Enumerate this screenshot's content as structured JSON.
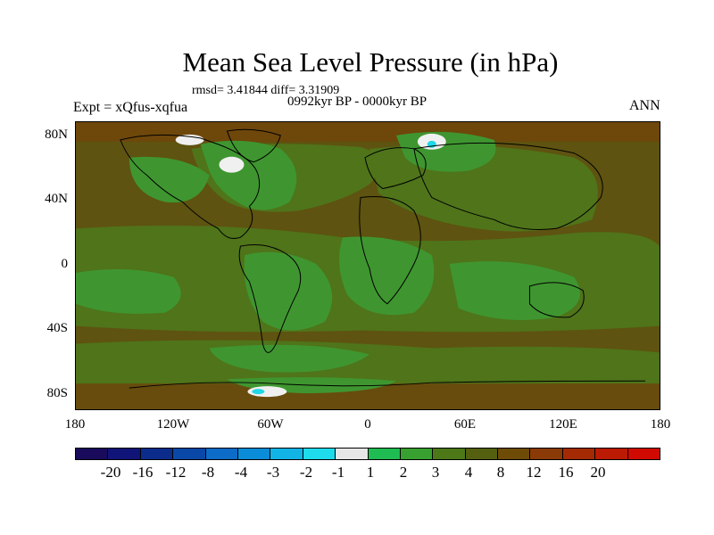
{
  "title": "Mean Sea Level Pressure (in hPa)",
  "stats": "rmsd= 3.41844 diff= 3.31909",
  "period": "0992kyr BP - 0000kyr BP",
  "experiment": "Expt = xQfus-xqfua",
  "season": "ANN",
  "map_axes": {
    "y_ticks": [
      "80N",
      "40N",
      "0",
      "40S",
      "80S"
    ],
    "x_ticks": [
      "180",
      "120W",
      "60W",
      "0",
      "60E",
      "120E",
      "180"
    ]
  },
  "colorbar": {
    "colors": [
      "#1a0a5c",
      "#101478",
      "#0c2c8c",
      "#0a48a8",
      "#0c6cc8",
      "#0a8cd8",
      "#12b4e6",
      "#1edcec",
      "#e6e6e6",
      "#1ebc52",
      "#38a030",
      "#4c7818",
      "#546010",
      "#6e4c08",
      "#8a3a06",
      "#a42a04",
      "#bc1a02",
      "#d00a00"
    ],
    "labels": [
      "-20",
      "-16",
      "-12",
      "-8",
      "-4",
      "-3",
      "-2",
      "-1",
      "1",
      "2",
      "3",
      "4",
      "8",
      "12",
      "16",
      "20"
    ]
  },
  "palette": {
    "brown": "#5e5310",
    "olive": "#4f741a",
    "green": "#3f9630",
    "dark_brown": "#6e470b",
    "white": "#f0f0f0",
    "cyan": "#20d8e8"
  }
}
